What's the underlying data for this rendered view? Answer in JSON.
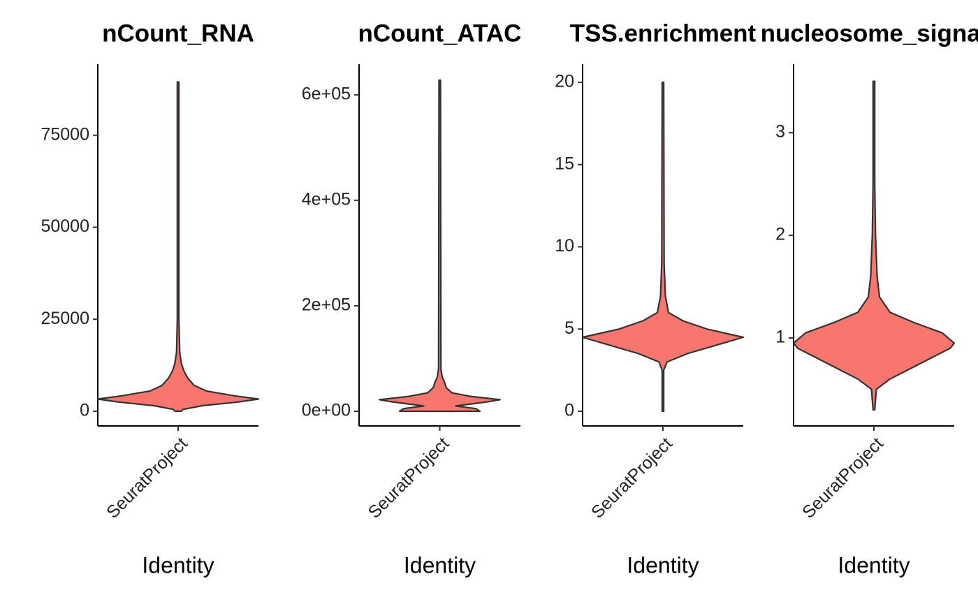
{
  "chart_data": [
    {
      "type": "violin",
      "title": "nCount_RNA",
      "xlabel": "Identity",
      "categories": [
        "SeuratProject"
      ],
      "color": "#F8766D",
      "ylim": [
        -4000,
        94300
      ],
      "yticks": [
        0,
        25000,
        50000,
        75000
      ],
      "profile": {
        "values": [
          0,
          500,
          1500,
          2500,
          3300,
          4200,
          5500,
          7000,
          9000,
          11000,
          13000,
          16000,
          25000,
          89500
        ],
        "density": [
          0.04,
          0.06,
          0.3,
          0.75,
          1.0,
          0.7,
          0.35,
          0.2,
          0.12,
          0.07,
          0.04,
          0.02,
          0.01,
          0.01
        ]
      }
    },
    {
      "type": "violin",
      "title": "nCount_ATAC",
      "xlabel": "Identity",
      "categories": [
        "SeuratProject"
      ],
      "color": "#F8766D",
      "ylim": [
        -27800,
        658000
      ],
      "yticks": [
        {
          "value": 0,
          "label": "0e+00"
        },
        {
          "value": 200000,
          "label": "2e+05"
        },
        {
          "value": 400000,
          "label": "4e+05"
        },
        {
          "value": 600000,
          "label": "6e+05"
        }
      ],
      "profile": {
        "values": [
          0,
          5000,
          10000,
          18000,
          22000,
          28000,
          35000,
          45000,
          55000,
          65000,
          80000,
          628000
        ],
        "density": [
          0.5,
          0.45,
          0.2,
          0.6,
          0.75,
          0.4,
          0.15,
          0.08,
          0.06,
          0.03,
          0.015,
          0.01
        ]
      }
    },
    {
      "type": "violin",
      "title": "TSS.enrichment",
      "xlabel": "Identity",
      "categories": [
        "SeuratProject"
      ],
      "color": "#F8766D",
      "ylim": [
        -0.89,
        21.1
      ],
      "yticks": [
        0,
        5,
        10,
        15,
        20
      ],
      "profile": {
        "values": [
          0,
          2.5,
          3,
          3.5,
          4,
          4.5,
          5,
          5.5,
          6,
          7,
          9,
          20
        ],
        "density": [
          0.01,
          0.01,
          0.05,
          0.3,
          0.65,
          1.0,
          0.55,
          0.25,
          0.07,
          0.03,
          0.015,
          0.01
        ]
      }
    },
    {
      "type": "violin",
      "title": "nucleosome_signal",
      "xlabel": "Identity",
      "categories": [
        "SeuratProject"
      ],
      "color": "#F8766D",
      "ylim": [
        0.143,
        3.667
      ],
      "yticks": [
        1,
        2,
        3
      ],
      "profile": {
        "values": [
          0.3,
          0.5,
          0.6,
          0.7,
          0.8,
          0.9,
          0.95,
          1.05,
          1.15,
          1.25,
          1.4,
          1.6,
          2.0,
          2.5,
          3.5
        ],
        "density": [
          0.01,
          0.03,
          0.2,
          0.45,
          0.7,
          0.95,
          1.0,
          0.85,
          0.5,
          0.2,
          0.07,
          0.04,
          0.02,
          0.01,
          0.01
        ]
      }
    }
  ]
}
